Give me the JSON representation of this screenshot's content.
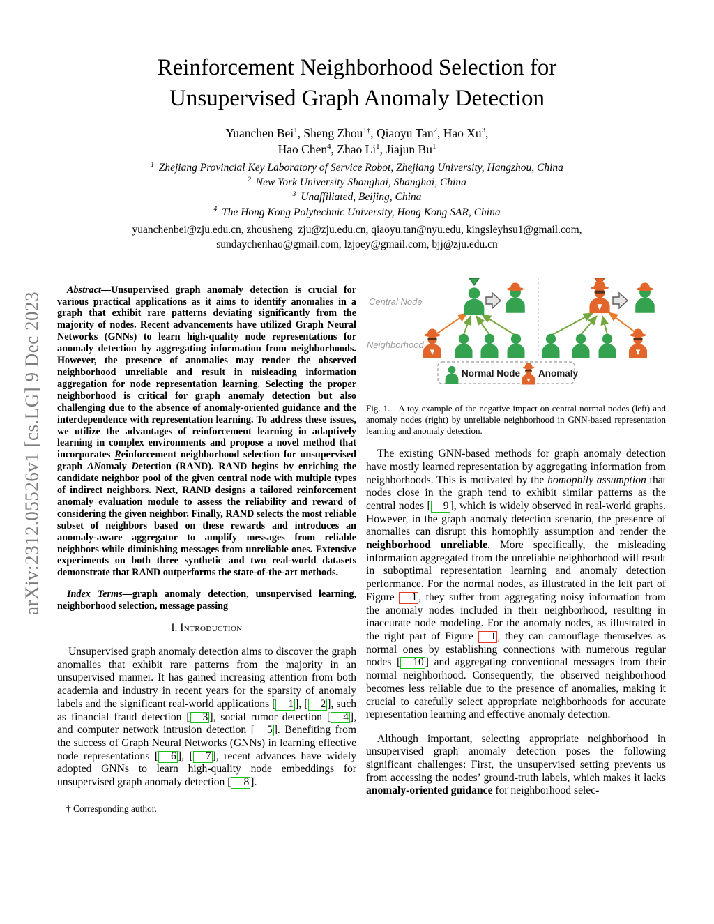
{
  "page": {
    "arxiv_label": "arXiv:2312.05526v1  [cs.LG]  9 Dec 2023"
  },
  "title": {
    "line1": "Reinforcement Neighborhood Selection for",
    "line2": "Unsupervised Graph Anomaly Detection"
  },
  "authors": {
    "line1": [
      {
        "name": "Yuanchen Bei",
        "sup": "1"
      },
      {
        "name": ", Sheng Zhou",
        "sup": "1†"
      },
      {
        "name": ", Qiaoyu Tan",
        "sup": "2"
      },
      {
        "name": ", Hao Xu",
        "sup": "3"
      },
      {
        "name": ","
      }
    ],
    "line2": [
      {
        "name": "Hao Chen",
        "sup": "4"
      },
      {
        "name": ", Zhao Li",
        "sup": "1"
      },
      {
        "name": ", Jiajun Bu",
        "sup": "1"
      }
    ]
  },
  "affiliations": [
    {
      "sup": "1",
      "text": "Zhejiang Provincial Key Laboratory of Service Robot, Zhejiang University, Hangzhou, China"
    },
    {
      "sup": "2",
      "text": "New York University Shanghai, Shanghai, China"
    },
    {
      "sup": "3",
      "text": "Unaffiliated, Beijing, China"
    },
    {
      "sup": "4",
      "text": "The Hong Kong Polytechnic University, Hong Kong SAR, China"
    }
  ],
  "emails": {
    "line1": "yuanchenbei@zju.edu.cn, zhousheng_zju@zju.edu.cn, qiaoyu.tan@nyu.edu, kingsleyhsu1@gmail.com,",
    "line2": "sundaychenhao@gmail.com, lzjoey@gmail.com, bjj@zju.edu.cn"
  },
  "abstract": {
    "segments": [
      {
        "t": "Abstract",
        "bi": true
      },
      {
        "t": "—Unsupervised graph anomaly detection is crucial for various practical applications as it aims to identify anomalies in a graph that exhibit rare patterns deviating significantly from the majority of nodes. Recent advancements have utilized Graph Neural Networks (GNNs) to learn high-quality node representations for anomaly detection by aggregating information from neighborhoods. However, the presence of anomalies may render the observed neighborhood unreliable and result in misleading information aggregation for node representation learning. Selecting the proper neighborhood is critical for graph anomaly detection but also challenging due to the absence of anomaly-oriented guidance and the interdependence with representation learning. To address these issues, we utilize the advantages of reinforcement learning in adaptively learning in complex environments and propose a novel method that incorporates "
      },
      {
        "t": "R",
        "u": true
      },
      {
        "t": "einforcement neighborhood selection for unsupervised graph "
      },
      {
        "t": "AN",
        "u": true
      },
      {
        "t": "omaly "
      },
      {
        "t": "D",
        "u": true
      },
      {
        "t": "etection (RAND). RAND begins by enriching the candidate neighbor pool of the given central node with multiple types of indirect neighbors. Next, RAND designs a tailored reinforcement anomaly evaluation module to assess the reliability and reward of considering the given neighbor. Finally, RAND selects the most reliable subset of neighbors based on these rewards and introduces an anomaly-aware aggregator to amplify messages from reliable neighbors while diminishing messages from unreliable ones. Extensive experiments on both three synthetic and two real-world datasets demonstrate that RAND outperforms the state-of-the-art methods."
      }
    ]
  },
  "index_terms": {
    "segments": [
      {
        "t": "Index Terms",
        "bi": true
      },
      {
        "t": "—graph anomaly detection, unsupervised learning, neighborhood selection, message passing"
      }
    ]
  },
  "sections": {
    "introduction": {
      "number": "I.",
      "title": "Introduction"
    }
  },
  "paragraphs": {
    "intro1": [
      {
        "t": "Unsupervised graph anomaly detection aims to discover the graph anomalies that exhibit rare patterns from the majority in an unsupervised manner. It has gained increasing attention from both academia and industry in recent years for the sparsity of anomaly labels and the significant real-world applications "
      },
      {
        "t": "1",
        "ref": "cite"
      },
      {
        "t": ", "
      },
      {
        "t": "2",
        "ref": "cite"
      },
      {
        "t": ", such as financial fraud detection "
      },
      {
        "t": "3",
        "ref": "cite"
      },
      {
        "t": ", social rumor detection "
      },
      {
        "t": "4",
        "ref": "cite"
      },
      {
        "t": ", and computer network intrusion detection "
      },
      {
        "t": "5",
        "ref": "cite"
      },
      {
        "t": ". Benefiting from the success of Graph Neural Networks (GNNs) in learning effective node representations "
      },
      {
        "t": "6",
        "ref": "cite"
      },
      {
        "t": ", "
      },
      {
        "t": "7",
        "ref": "cite"
      },
      {
        "t": ", recent advances have widely adopted GNNs to learn high-quality node embeddings for unsupervised graph anomaly detection "
      },
      {
        "t": "8",
        "ref": "cite"
      },
      {
        "t": "."
      }
    ],
    "right1": [
      {
        "t": "The existing GNN-based methods for graph anomaly detection have mostly learned representation by aggregating information from neighborhoods. This is motivated by the "
      },
      {
        "t": "homophily assumption",
        "i": true
      },
      {
        "t": " that nodes close in the graph tend to exhibit similar patterns as the central nodes "
      },
      {
        "t": "9",
        "ref": "cite"
      },
      {
        "t": ", which is widely observed in real-world graphs. However, in the graph anomaly detection scenario, the presence of anomalies can disrupt this homophily assumption and render the "
      },
      {
        "t": "neighborhood unreliable",
        "b": true
      },
      {
        "t": ". More specifically, the misleading information aggregated from the unreliable neighborhood will result in suboptimal representation learning and anomaly detection performance. For the normal nodes, as illustrated in the left part of Figure "
      },
      {
        "t": "1",
        "ref": "fig"
      },
      {
        "t": ", they suffer from aggregating noisy information from the anomaly nodes included in their neighborhood, resulting in inaccurate node modeling. For the anomaly nodes, as illustrated in the right part of Figure "
      },
      {
        "t": "1",
        "ref": "fig"
      },
      {
        "t": ", they can camouflage themselves as normal ones by establishing connections with numerous regular nodes "
      },
      {
        "t": "10",
        "ref": "cite"
      },
      {
        "t": " and aggregating conventional messages from their normal neighborhood. Consequently, the observed neighborhood becomes less reliable due to the presence of anomalies, making it crucial to carefully select appropriate neighborhoods for accurate representation learning and effective anomaly detection."
      }
    ],
    "right2": [
      {
        "t": "Although important, selecting appropriate neighborhood in unsupervised graph anomaly detection poses the following significant challenges: First, the unsupervised setting prevents us from accessing the nodes’ ground-truth labels, which makes it lacks "
      },
      {
        "t": "anomaly-oriented guidance",
        "b": true
      },
      {
        "t": " for neighborhood selec-"
      }
    ]
  },
  "footnote": "† Corresponding author.",
  "figure1": {
    "labels": {
      "central": "Central Node",
      "neighborhood": "Neighborhood"
    },
    "legend": {
      "normal": "Normal Node",
      "anomaly": "Anomaly"
    },
    "caption": {
      "label": "Fig. 1.",
      "text": "A toy example of the negative impact on central normal nodes (left) and anomaly nodes (right) by unreliable neighborhood in GNN-based representation learning and anomaly detection."
    },
    "icons": {
      "normal": "person-icon",
      "anomaly": "spy-icon",
      "camouflaged": "person-with-hat-icon",
      "transform": "block-arrow-icon"
    },
    "colors": {
      "green": "#35a24f",
      "orange": "#e2662b",
      "arrow_green": "#74a83e",
      "arrow_orange": "#e87a28"
    }
  },
  "link_colors": {
    "citation_box": "#15c315",
    "figure_box": "#e23b2c"
  }
}
